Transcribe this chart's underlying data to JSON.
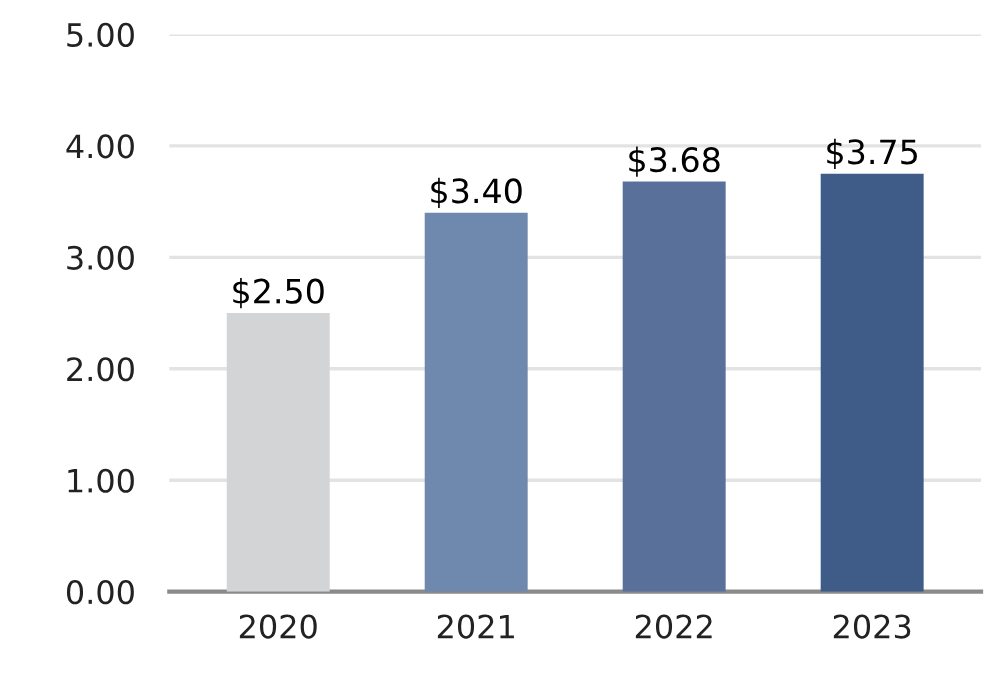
{
  "chart_data": {
    "type": "bar",
    "categories": [
      "2020",
      "2021",
      "2022",
      "2023"
    ],
    "values": [
      2.5,
      3.4,
      3.68,
      3.75
    ],
    "colors": [
      "#d3d4d6",
      "#6f88ad",
      "#59719a",
      "#3f5b87"
    ],
    "value_labels": [
      "$2.50",
      "$3.40",
      "$3.68",
      "$3.75"
    ],
    "ylim": [
      0,
      5
    ],
    "yticks": [
      {
        "value": 0,
        "label": "0.00"
      },
      {
        "value": 1,
        "label": "1.00"
      },
      {
        "value": 2,
        "label": "2.00"
      },
      {
        "value": 3,
        "label": "3.00"
      },
      {
        "value": 4,
        "label": "4.00"
      },
      {
        "value": 5,
        "label": "5.00"
      }
    ],
    "grid": "y",
    "legend": false
  }
}
